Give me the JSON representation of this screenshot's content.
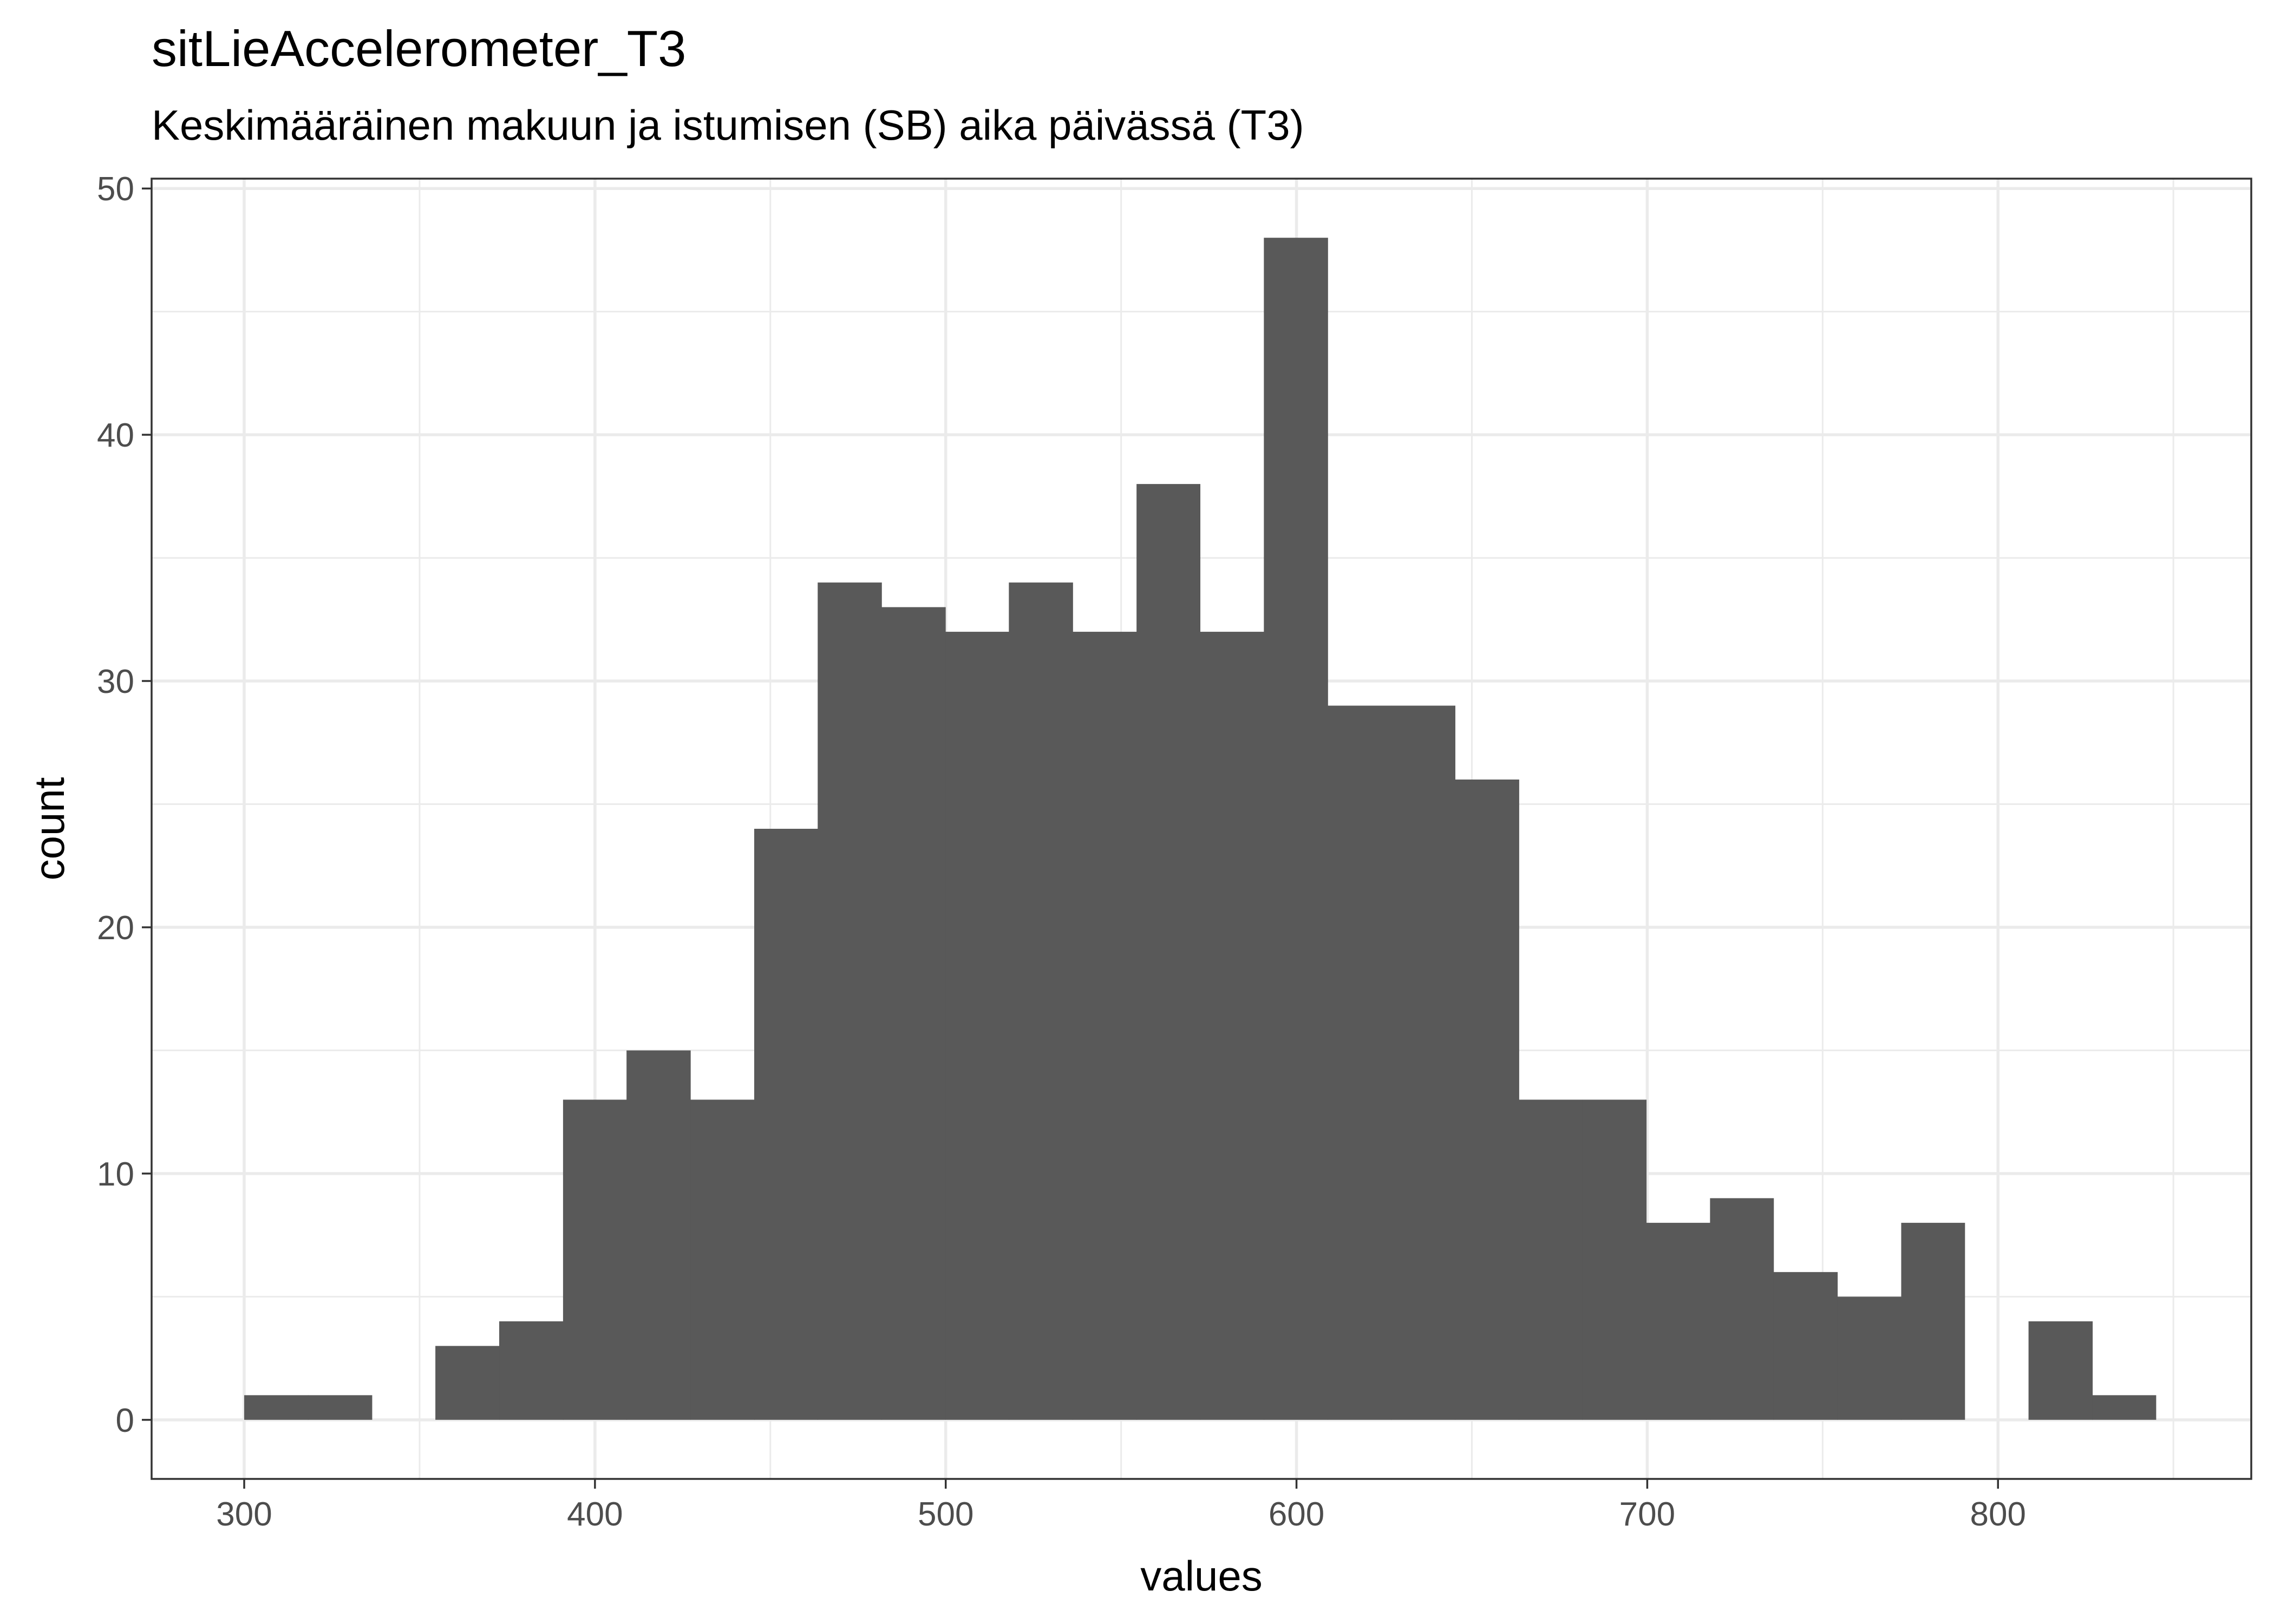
{
  "chart_data": {
    "type": "bar",
    "title": "sitLieAccelerometer_T3",
    "subtitle": "Keskimääräinen makuun ja istumisen (SB) aika päivässä (T3)",
    "xlabel": "values",
    "ylabel": "count",
    "xlim": [
      273.6,
      872.2
    ],
    "ylim": [
      -2.4,
      50.4
    ],
    "x_ticks": [
      300,
      400,
      500,
      600,
      700,
      800
    ],
    "y_ticks": [
      0,
      10,
      20,
      30,
      40,
      50
    ],
    "bin_width": 18.16,
    "bins": [
      {
        "start": 300.0,
        "end": 318.2,
        "count": 1
      },
      {
        "start": 318.2,
        "end": 336.4,
        "count": 1
      },
      {
        "start": 336.4,
        "end": 354.5,
        "count": 0
      },
      {
        "start": 354.5,
        "end": 372.7,
        "count": 3
      },
      {
        "start": 372.7,
        "end": 390.9,
        "count": 4
      },
      {
        "start": 390.9,
        "end": 409.0,
        "count": 13
      },
      {
        "start": 409.0,
        "end": 427.2,
        "count": 15
      },
      {
        "start": 427.2,
        "end": 445.4,
        "count": 13
      },
      {
        "start": 445.4,
        "end": 463.5,
        "count": 24
      },
      {
        "start": 463.5,
        "end": 481.7,
        "count": 34
      },
      {
        "start": 481.7,
        "end": 499.9,
        "count": 33
      },
      {
        "start": 499.9,
        "end": 518.0,
        "count": 32
      },
      {
        "start": 518.0,
        "end": 536.2,
        "count": 34
      },
      {
        "start": 536.2,
        "end": 554.4,
        "count": 32
      },
      {
        "start": 554.4,
        "end": 572.5,
        "count": 38
      },
      {
        "start": 572.5,
        "end": 590.7,
        "count": 32
      },
      {
        "start": 590.7,
        "end": 608.9,
        "count": 48
      },
      {
        "start": 608.9,
        "end": 627.0,
        "count": 29
      },
      {
        "start": 627.0,
        "end": 645.2,
        "count": 29
      },
      {
        "start": 645.2,
        "end": 663.4,
        "count": 26
      },
      {
        "start": 663.4,
        "end": 681.5,
        "count": 13
      },
      {
        "start": 681.5,
        "end": 699.7,
        "count": 13
      },
      {
        "start": 699.7,
        "end": 717.9,
        "count": 8
      },
      {
        "start": 717.9,
        "end": 736.0,
        "count": 9
      },
      {
        "start": 736.0,
        "end": 754.2,
        "count": 6
      },
      {
        "start": 754.2,
        "end": 772.4,
        "count": 5
      },
      {
        "start": 772.4,
        "end": 790.5,
        "count": 8
      },
      {
        "start": 790.5,
        "end": 808.7,
        "count": 0
      },
      {
        "start": 808.7,
        "end": 826.9,
        "count": 4
      },
      {
        "start": 826.9,
        "end": 845.0,
        "count": 1
      }
    ],
    "bar_color": "#595959",
    "grid": true,
    "legend": "none",
    "theme": "bw"
  }
}
